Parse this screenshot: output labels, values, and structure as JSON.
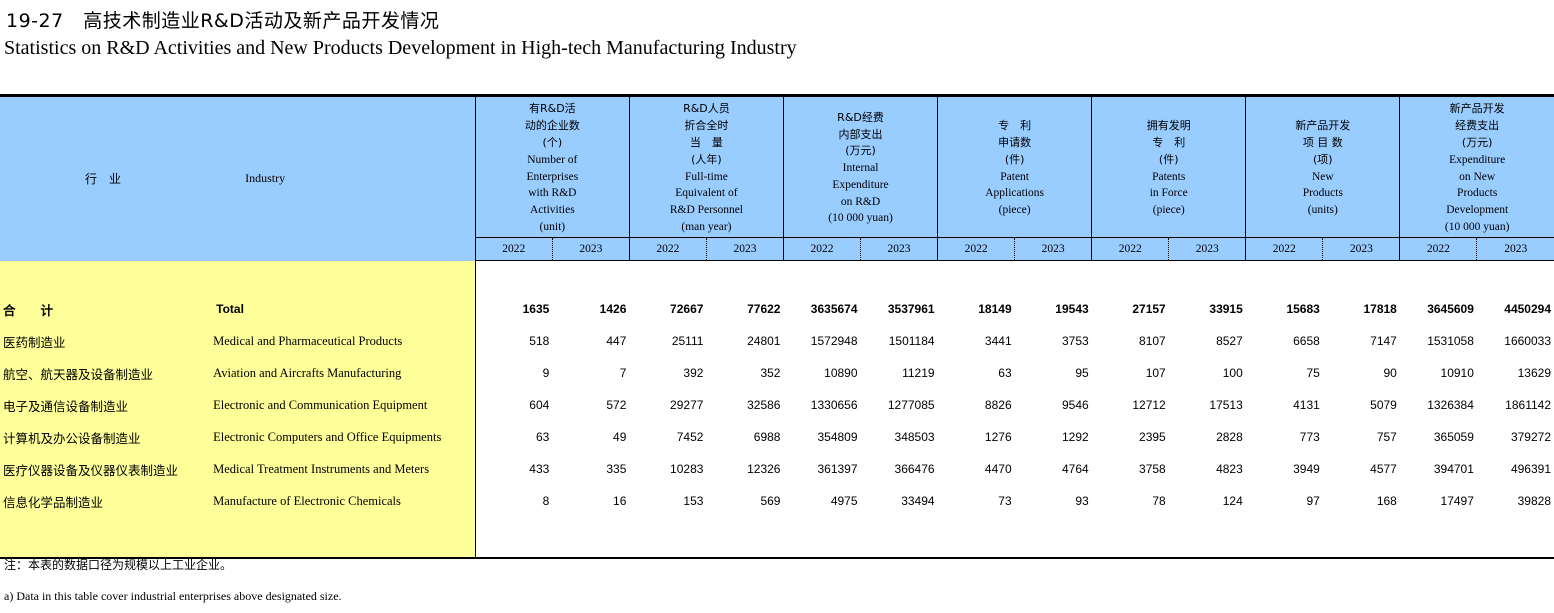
{
  "title": {
    "number": "19-27",
    "cn": "高技术制造业R&D活动及新产品开发情况",
    "en": "Statistics on R&D Activities and New Products Development in High-tech Manufacturing Industry"
  },
  "header": {
    "industry_cn": "行　业",
    "industry_en": "Industry",
    "columns": [
      {
        "cn1": "有R&D活",
        "cn2": "动的企业数",
        "unit_cn": "(个)",
        "en": [
          "Number of",
          "Enterprises",
          "with R&D",
          "Activities",
          "(unit)"
        ]
      },
      {
        "cn1": "R&D人员",
        "cn2": "折合全时",
        "cn3": "当　量",
        "unit_cn": "(人年)",
        "en": [
          "Full-time",
          "Equivalent of",
          "R&D Personnel",
          "(man year)"
        ]
      },
      {
        "cn1": "R&D经费",
        "cn2": "内部支出",
        "unit_cn": "(万元)",
        "en": [
          "Internal",
          "Expenditure",
          "on R&D",
          "(10 000 yuan)"
        ]
      },
      {
        "cn1": "专　利",
        "cn2": "申请数",
        "unit_cn": "(件)",
        "en": [
          "Patent",
          "Applications",
          "(piece)"
        ]
      },
      {
        "cn1": "拥有发明",
        "cn2": "专　利",
        "unit_cn": "(件)",
        "en": [
          "Patents",
          "in Force",
          "(piece)"
        ]
      },
      {
        "cn1": "新产品开发",
        "cn2": "项 目 数",
        "unit_cn": "(项)",
        "en": [
          "New",
          "Products",
          "(units)"
        ]
      },
      {
        "cn1": "新产品开发",
        "cn2": "经费支出",
        "unit_cn": "(万元)",
        "en": [
          "Expenditure",
          "on New",
          "Products",
          "Development",
          "(10 000 yuan)"
        ]
      }
    ],
    "years": [
      "2022",
      "2023"
    ]
  },
  "rows": [
    {
      "cn": "合　　计",
      "en": "Total",
      "values": [
        "1635",
        "1426",
        "72667",
        "77622",
        "3635674",
        "3537961",
        "18149",
        "19543",
        "27157",
        "33915",
        "15683",
        "17818",
        "3645609",
        "4450294"
      ]
    },
    {
      "cn": "医药制造业",
      "en": "Medical and Pharmaceutical Products",
      "values": [
        "518",
        "447",
        "25111",
        "24801",
        "1572948",
        "1501184",
        "3441",
        "3753",
        "8107",
        "8527",
        "6658",
        "7147",
        "1531058",
        "1660033"
      ]
    },
    {
      "cn": "航空、航天器及设备制造业",
      "en": "Aviation and Aircrafts Manufacturing",
      "values": [
        "9",
        "7",
        "392",
        "352",
        "10890",
        "11219",
        "63",
        "95",
        "107",
        "100",
        "75",
        "90",
        "10910",
        "13629"
      ]
    },
    {
      "cn": "电子及通信设备制造业",
      "en": "Electronic and Communication Equipment",
      "values": [
        "604",
        "572",
        "29277",
        "32586",
        "1330656",
        "1277085",
        "8826",
        "9546",
        "12712",
        "17513",
        "4131",
        "5079",
        "1326384",
        "1861142"
      ]
    },
    {
      "cn": "计算机及办公设备制造业",
      "en": "Electronic Computers and Office Equipments",
      "values": [
        "63",
        "49",
        "7452",
        "6988",
        "354809",
        "348503",
        "1276",
        "1292",
        "2395",
        "2828",
        "773",
        "757",
        "365059",
        "379272"
      ]
    },
    {
      "cn": "医疗仪器设备及仪器仪表制造业",
      "en": "Medical Treatment Instruments and Meters",
      "values": [
        "433",
        "335",
        "10283",
        "12326",
        "361397",
        "366476",
        "4470",
        "4764",
        "3758",
        "4823",
        "3949",
        "4577",
        "394701",
        "496391"
      ]
    },
    {
      "cn": "信息化学品制造业",
      "en": "Manufacture of Electronic Chemicals",
      "values": [
        "8",
        "16",
        "153",
        "569",
        "4975",
        "33494",
        "73",
        "93",
        "78",
        "124",
        "97",
        "168",
        "17497",
        "39828"
      ]
    }
  ],
  "notes": {
    "cn": "注：本表的数据口径为规模以上工业企业。",
    "en": "a) Data in this table cover industrial enterprises above designated size."
  }
}
